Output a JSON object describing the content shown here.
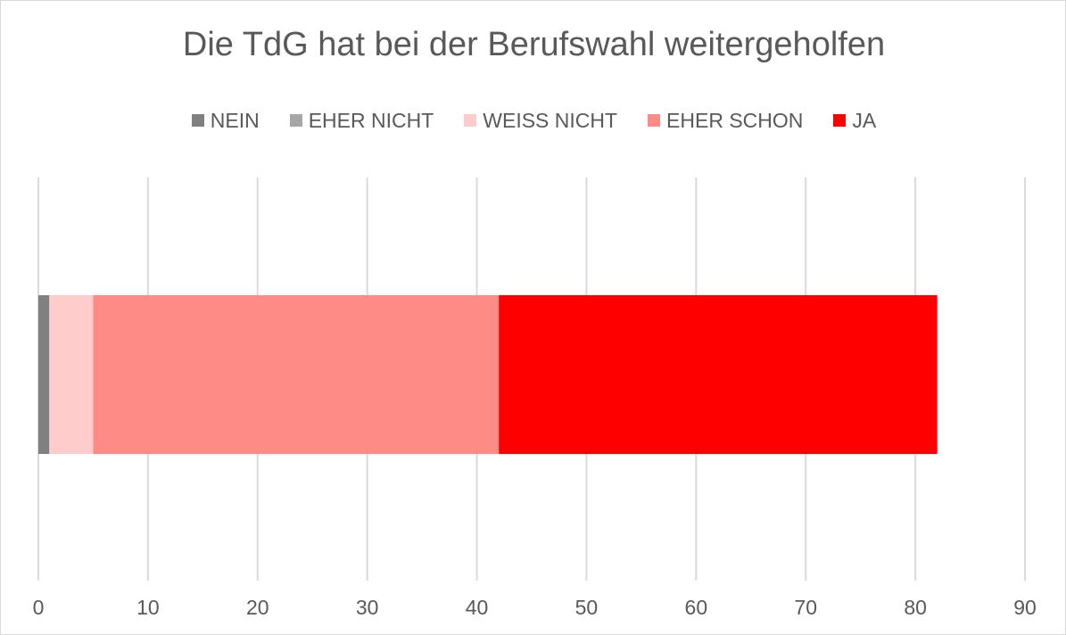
{
  "chart_data": {
    "type": "bar",
    "orientation": "horizontal",
    "stacked": true,
    "title": "Die TdG hat bei der Berufswahl weitergeholfen",
    "xlabel": "",
    "ylabel": "",
    "xlim": [
      0,
      90
    ],
    "x_ticks": [
      "0",
      "10",
      "20",
      "30",
      "40",
      "50",
      "60",
      "70",
      "80",
      "90"
    ],
    "grid": true,
    "legend_position": "top",
    "categories": [
      ""
    ],
    "series": [
      {
        "name": "NEIN",
        "color": "#808080",
        "values": [
          1
        ]
      },
      {
        "name": "EHER NICHT",
        "color": "#a6a6a6",
        "values": [
          0
        ]
      },
      {
        "name": "WEISS NICHT",
        "color": "#ffcccc",
        "values": [
          4
        ]
      },
      {
        "name": "EHER SCHON",
        "color": "#ff8b87",
        "values": [
          37
        ]
      },
      {
        "name": "JA",
        "color": "#ff0000",
        "values": [
          40
        ]
      }
    ]
  }
}
